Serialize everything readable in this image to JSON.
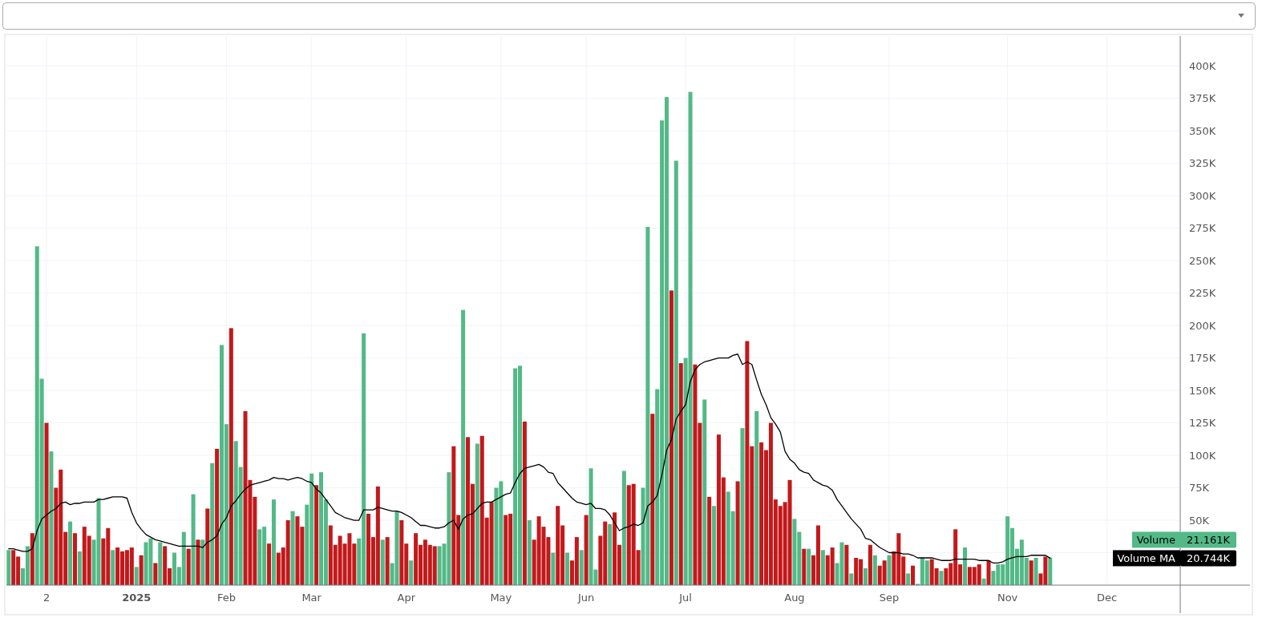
{
  "chart_data": {
    "type": "bar",
    "categories": [
      null,
      null,
      null,
      null,
      null,
      null,
      null,
      null,
      "2",
      null,
      null,
      null,
      null,
      null,
      null,
      null,
      null,
      null,
      null,
      null,
      null,
      null,
      null,
      null,
      null,
      null,
      null,
      "2025",
      null,
      null,
      null,
      null,
      null,
      null,
      null,
      null,
      null,
      null,
      null,
      null,
      null,
      null,
      null,
      null,
      null,
      null,
      "Feb",
      null,
      null,
      null,
      null,
      null,
      null,
      null,
      null,
      null,
      null,
      null,
      null,
      null,
      null,
      null,
      null,
      null,
      "Mar",
      null,
      null,
      null,
      null,
      null,
      null,
      null,
      null,
      null,
      null,
      null,
      null,
      null,
      null,
      null,
      null,
      null,
      null,
      null,
      "Apr",
      null,
      null,
      null,
      null,
      null,
      null,
      null,
      null,
      null,
      null,
      null,
      null,
      null,
      null,
      null,
      null,
      null,
      null,
      null,
      "May",
      null,
      null,
      null,
      null,
      null,
      null,
      null,
      null,
      null,
      null,
      null,
      null,
      null,
      null,
      null,
      null,
      null,
      "Jun",
      null,
      null,
      null,
      null,
      null,
      null,
      null,
      null,
      null,
      null,
      null,
      null,
      null,
      null,
      null,
      null,
      null,
      null,
      null,
      null,
      "Jul",
      null,
      null,
      null,
      null,
      null,
      null,
      null,
      null,
      null,
      null,
      null,
      null,
      null,
      null,
      null,
      null,
      null,
      null,
      null,
      null,
      null,
      null,
      "Aug",
      null,
      null,
      null,
      null,
      null,
      null,
      null,
      null,
      null,
      null,
      null,
      null,
      null,
      null,
      null,
      null,
      null,
      null,
      null,
      "Sep",
      null,
      null,
      null,
      null,
      null,
      null,
      null,
      null,
      null,
      null,
      null,
      null,
      null,
      null,
      null,
      null,
      null,
      null,
      null,
      null,
      null,
      null,
      null,
      null,
      "Nov",
      null,
      null,
      null,
      null,
      null,
      null,
      null,
      null,
      null,
      null,
      null,
      null,
      null,
      null,
      null,
      null,
      null,
      null,
      null,
      null,
      "Dec",
      null,
      null,
      null,
      null,
      null,
      null,
      null,
      null,
      null,
      null,
      null,
      null,
      null,
      null,
      null
    ],
    "series": [
      {
        "name": "Volume",
        "values": [
          27,
          27,
          22,
          13,
          30,
          40,
          261,
          159,
          125,
          103,
          75,
          89,
          41,
          49,
          40,
          26,
          45,
          38,
          35,
          67,
          36,
          44,
          27,
          29,
          26,
          27,
          29,
          14,
          23,
          33,
          36,
          17,
          33,
          30,
          13,
          25,
          14,
          41,
          28,
          70,
          35,
          35,
          59,
          94,
          105,
          185,
          124,
          198,
          111,
          91,
          134,
          81,
          68,
          43,
          45,
          32,
          66,
          25,
          29,
          50,
          57,
          53,
          45,
          62,
          86,
          77,
          87,
          66,
          46,
          31,
          38,
          32,
          40,
          32,
          36,
          194,
          55,
          37,
          76,
          35,
          37,
          17,
          57,
          50,
          32,
          19,
          40,
          31,
          35,
          31,
          30,
          30,
          32,
          87,
          107,
          54,
          212,
          114,
          78,
          109,
          115,
          52,
          64,
          75,
          80,
          54,
          55,
          167,
          169,
          126,
          50,
          35,
          53,
          45,
          37,
          25,
          61,
          46,
          25,
          19,
          37,
          27,
          54,
          90,
          12,
          38,
          49,
          47,
          56,
          31,
          88,
          77,
          78,
          27,
          75,
          276,
          132,
          151,
          358,
          376,
          227,
          327,
          171,
          175,
          380,
          170,
          125,
          143,
          68,
          61,
          116,
          83,
          72,
          57,
          80,
          121,
          188,
          107,
          134,
          110,
          104,
          125,
          66,
          61,
          64,
          81,
          51,
          41,
          28,
          28,
          23,
          46,
          27,
          23,
          29,
          17,
          33,
          31,
          9,
          21,
          20,
          13,
          31,
          23,
          15,
          19,
          23,
          26,
          40,
          22,
          9,
          15,
          1,
          21,
          19,
          20,
          13,
          11,
          13,
          17,
          43,
          16,
          29,
          14,
          14,
          16,
          5,
          19,
          11,
          16,
          16,
          53,
          44,
          28,
          35,
          21,
          19,
          21,
          9,
          22,
          21.161,
          null,
          null,
          null,
          null,
          null,
          null,
          null,
          null,
          null,
          null,
          null,
          null,
          null,
          null,
          null,
          null,
          null,
          null,
          null,
          null,
          null,
          null,
          null,
          null,
          null,
          null,
          null
        ],
        "colors": [
          "#53b987",
          "#c2191b",
          "#c2191b",
          "#53b987",
          "#53b987",
          "#c2191b",
          "#53b987",
          "#53b987",
          "#c2191b",
          "#53b987",
          "#c2191b",
          "#c2191b",
          "#c2191b",
          "#53b987",
          "#c2191b",
          "#53b987",
          "#c2191b",
          "#c2191b",
          "#53b987",
          "#53b987",
          "#c2191b",
          "#c2191b",
          "#53b987",
          "#c2191b",
          "#c2191b",
          "#c2191b",
          "#c2191b",
          "#53b987",
          "#c2191b",
          "#53b987",
          "#53b987",
          "#c2191b",
          "#53b987",
          "#c2191b",
          "#c2191b",
          "#53b987",
          "#53b987",
          "#53b987",
          "#c2191b",
          "#53b987",
          "#c2191b",
          "#53b987",
          "#c2191b",
          "#53b987",
          "#c2191b",
          "#53b987",
          "#53b987",
          "#c2191b",
          "#53b987",
          "#53b987",
          "#c2191b",
          "#c2191b",
          "#c2191b",
          "#53b987",
          "#53b987",
          "#c2191b",
          "#53b987",
          "#c2191b",
          "#c2191b",
          "#c2191b",
          "#53b987",
          "#c2191b",
          "#c2191b",
          "#53b987",
          "#53b987",
          "#c2191b",
          "#53b987",
          "#53b987",
          "#c2191b",
          "#c2191b",
          "#c2191b",
          "#c2191b",
          "#c2191b",
          "#c2191b",
          "#53b987",
          "#53b987",
          "#c2191b",
          "#c2191b",
          "#c2191b",
          "#53b987",
          "#c2191b",
          "#53b987",
          "#53b987",
          "#c2191b",
          "#c2191b",
          "#53b987",
          "#c2191b",
          "#c2191b",
          "#c2191b",
          "#c2191b",
          "#c2191b",
          "#53b987",
          "#53b987",
          "#53b987",
          "#c2191b",
          "#c2191b",
          "#53b987",
          "#c2191b",
          "#c2191b",
          "#53b987",
          "#c2191b",
          "#c2191b",
          "#c2191b",
          "#53b987",
          "#53b987",
          "#c2191b",
          "#c2191b",
          "#53b987",
          "#53b987",
          "#c2191b",
          "#53b987",
          "#c2191b",
          "#c2191b",
          "#c2191b",
          "#c2191b",
          "#53b987",
          "#c2191b",
          "#c2191b",
          "#53b987",
          "#c2191b",
          "#c2191b",
          "#53b987",
          "#c2191b",
          "#53b987",
          "#53b987",
          "#c2191b",
          "#c2191b",
          "#53b987",
          "#c2191b",
          "#c2191b",
          "#53b987",
          "#c2191b",
          "#c2191b",
          "#c2191b",
          "#53b987",
          "#53b987",
          "#c2191b",
          "#53b987",
          "#53b987",
          "#53b987",
          "#c2191b",
          "#53b987",
          "#c2191b",
          "#53b987",
          "#53b987",
          "#c2191b",
          "#c2191b",
          "#53b987",
          "#c2191b",
          "#53b987",
          "#c2191b",
          "#c2191b",
          "#53b987",
          "#53b987",
          "#c2191b",
          "#53b987",
          "#c2191b",
          "#c2191b",
          "#53b987",
          "#c2191b",
          "#c2191b",
          "#c2191b",
          "#c2191b",
          "#c2191b",
          "#c2191b",
          "#c2191b",
          "#53b987",
          "#53b987",
          "#c2191b",
          "#53b987",
          "#c2191b",
          "#c2191b",
          "#53b987",
          "#c2191b",
          "#c2191b",
          "#53b987",
          "#53b987",
          "#c2191b",
          "#53b987",
          "#c2191b",
          "#c2191b",
          "#53b987",
          "#c2191b",
          "#53b987",
          "#c2191b",
          "#c2191b",
          "#53b987",
          "#c2191b",
          "#c2191b",
          "#c2191b",
          "#53b987",
          "#c2191b",
          "#53b987",
          "#53b987",
          "#53b987",
          "#c2191b",
          "#c2191b",
          "#53b987",
          "#c2191b",
          "#c2191b",
          "#c2191b",
          "#c2191b",
          "#53b987",
          "#c2191b",
          "#c2191b",
          "#c2191b",
          "#53b987",
          "#c2191b",
          "#53b987",
          "#53b987",
          "#53b987",
          "#53b987",
          "#53b987",
          "#53b987",
          "#53b987",
          "#53b987",
          "#c2191b",
          "#53b987",
          "#c2191b",
          "#c2191b",
          "#53b987",
          null,
          null,
          null,
          null,
          null,
          null,
          null,
          null,
          null,
          null,
          null,
          null,
          null,
          null,
          null,
          null,
          null,
          null,
          null,
          null,
          null,
          null,
          null,
          null,
          null,
          null,
          null
        ]
      },
      {
        "name": "Volume MA",
        "type": "line",
        "color": "#000000",
        "values": [
          28,
          28,
          27,
          26,
          26,
          28,
          42,
          51,
          54,
          57,
          59,
          63,
          64,
          62,
          63,
          63,
          64,
          64,
          64,
          66,
          66,
          67,
          68,
          68,
          68,
          67,
          56,
          48,
          43,
          39,
          37,
          35,
          34,
          33,
          32,
          31,
          30,
          30,
          30,
          30,
          30,
          29,
          33,
          35,
          38,
          47,
          52,
          61,
          65,
          70,
          74,
          77,
          78,
          79,
          80,
          81,
          83,
          82,
          82,
          81,
          82,
          83,
          82,
          80,
          79,
          74,
          71,
          66,
          61,
          56,
          54,
          52,
          51,
          50,
          50,
          58,
          58,
          58,
          60,
          59,
          58,
          57,
          57,
          56,
          54,
          52,
          49,
          46,
          46,
          45,
          44,
          44,
          45,
          48,
          50,
          43,
          51,
          54,
          55,
          59,
          63,
          64,
          64,
          66,
          68,
          70,
          71,
          79,
          86,
          90,
          91,
          92,
          93,
          91,
          87,
          86,
          79,
          75,
          71,
          67,
          64,
          63,
          62,
          63,
          59,
          59,
          58,
          54,
          48,
          42,
          44,
          45,
          47,
          46,
          48,
          61,
          64,
          69,
          85,
          104,
          112,
          128,
          134,
          139,
          157,
          166,
          170,
          172,
          173,
          174,
          175,
          175,
          175,
          177,
          178,
          170,
          172,
          170,
          158,
          147,
          139,
          129,
          124,
          118,
          103,
          97,
          94,
          89,
          87,
          86,
          81,
          79,
          77,
          76,
          73,
          66,
          61,
          56,
          51,
          47,
          43,
          36,
          35,
          32,
          29,
          27,
          25,
          25,
          25,
          24,
          24,
          23,
          21,
          21,
          21,
          21,
          20,
          19,
          19,
          19,
          20,
          20,
          20,
          20,
          20,
          19,
          19,
          19,
          17,
          17,
          18,
          20,
          21,
          22,
          22,
          22,
          23,
          23,
          23,
          23,
          20.744,
          null,
          null,
          null,
          null,
          null,
          null,
          null,
          null,
          null,
          null,
          null,
          null,
          null,
          null,
          null,
          null,
          null,
          null,
          null,
          null,
          null,
          null,
          null,
          null,
          null,
          null,
          null
        ]
      }
    ],
    "ylim": [
      0,
      423
    ],
    "yticks": [
      {
        "value": 25,
        "label": null
      },
      {
        "value": 50,
        "label": "50K"
      },
      {
        "value": 75,
        "label": "75K"
      },
      {
        "value": 100,
        "label": "100K"
      },
      {
        "value": 125,
        "label": "125K"
      },
      {
        "value": 150,
        "label": "150K"
      },
      {
        "value": 175,
        "label": "175K"
      },
      {
        "value": 200,
        "label": "200K"
      },
      {
        "value": 225,
        "label": "225K"
      },
      {
        "value": 250,
        "label": "250K"
      },
      {
        "value": 275,
        "label": "275K"
      },
      {
        "value": 300,
        "label": "300K"
      },
      {
        "value": 325,
        "label": "325K"
      },
      {
        "value": 350,
        "label": "350K"
      },
      {
        "value": 375,
        "label": "375K"
      },
      {
        "value": 400,
        "label": "400K"
      }
    ],
    "grid": true,
    "legend": "bottom right",
    "annotations": [
      "21.161K",
      "20.744K"
    ]
  }
}
